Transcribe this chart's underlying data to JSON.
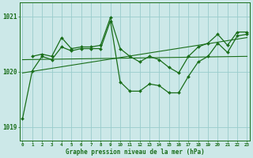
{
  "bg_color": "#cce8e8",
  "grid_color": "#99cccc",
  "line_color": "#1a6e1a",
  "dot_color": "#1a6e1a",
  "ylim": [
    1018.75,
    1021.25
  ],
  "yticks": [
    1019,
    1020,
    1021
  ],
  "ytick_labels": [
    "1019",
    "1020",
    "1021"
  ],
  "xlim": [
    -0.3,
    23.3
  ],
  "xticks": [
    0,
    1,
    2,
    3,
    4,
    5,
    6,
    7,
    8,
    9,
    10,
    11,
    12,
    13,
    14,
    15,
    16,
    17,
    18,
    19,
    20,
    21,
    22,
    23
  ],
  "xlabel": "Graphe pression niveau de la mer (hPa)",
  "series": [
    {
      "x": [
        0,
        1,
        2,
        3,
        4,
        5,
        6,
        7,
        8,
        9,
        10,
        11,
        12,
        13,
        14,
        15,
        16,
        17,
        18,
        19,
        20,
        21,
        22,
        23
      ],
      "y": [
        1019.15,
        1020.02,
        1020.28,
        1020.22,
        1020.45,
        1020.38,
        1020.42,
        1020.42,
        1020.42,
        1020.92,
        1019.82,
        1019.65,
        1019.65,
        1019.78,
        1019.75,
        1019.62,
        1019.62,
        1019.92,
        1020.18,
        1020.28,
        1020.52,
        1020.35,
        1020.65,
        1020.68
      ],
      "marker": "D",
      "markersize": 2.0,
      "linewidth": 0.9,
      "has_marker": true
    },
    {
      "x": [
        1,
        2,
        3,
        4,
        5,
        6,
        7,
        8,
        9,
        10,
        11,
        12,
        13,
        14,
        15,
        16,
        17,
        18,
        19,
        20,
        21,
        22,
        23
      ],
      "y": [
        1020.28,
        1020.32,
        1020.28,
        1020.62,
        1020.42,
        1020.45,
        1020.45,
        1020.48,
        1020.98,
        1020.42,
        1020.28,
        1020.18,
        1020.28,
        1020.22,
        1020.08,
        1019.98,
        1020.28,
        1020.45,
        1020.52,
        1020.68,
        1020.48,
        1020.72,
        1020.72
      ],
      "marker": "D",
      "markersize": 2.0,
      "linewidth": 0.9,
      "has_marker": true
    },
    {
      "x": [
        0,
        23
      ],
      "y": [
        1020.22,
        1020.28
      ],
      "marker": null,
      "markersize": 0,
      "linewidth": 0.8,
      "has_marker": false
    },
    {
      "x": [
        0,
        23
      ],
      "y": [
        1019.98,
        1020.62
      ],
      "marker": null,
      "markersize": 0,
      "linewidth": 0.8,
      "has_marker": false
    }
  ]
}
